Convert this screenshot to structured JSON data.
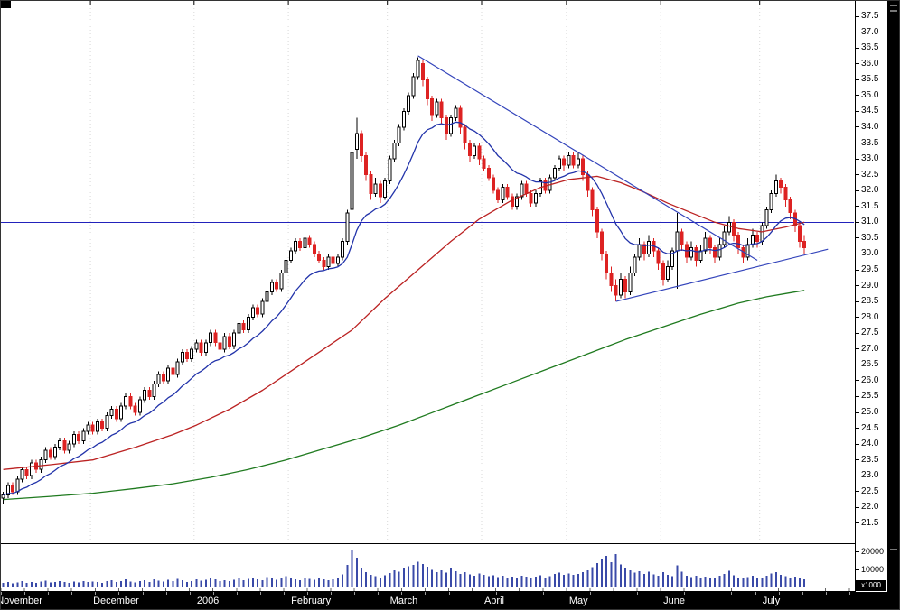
{
  "window": {
    "volume_multiplier_label": "x1000"
  },
  "chart_data": {
    "type": "candlestick",
    "total_slots": 181,
    "y_axis": {
      "label_min": 21.5,
      "label_max": 37.5,
      "step": 0.5,
      "view_min": 21.3,
      "view_max": 37.7
    },
    "x_axis": {
      "months": [
        {
          "label": "November",
          "day": -1.5
        },
        {
          "label": "December",
          "day": 19
        },
        {
          "label": "2006",
          "day": 41
        },
        {
          "label": "February",
          "day": 61
        },
        {
          "label": "March",
          "day": 82
        },
        {
          "label": "April",
          "day": 102
        },
        {
          "label": "May",
          "day": 120
        },
        {
          "label": "June",
          "day": 140
        },
        {
          "label": "July",
          "day": 161
        }
      ]
    },
    "volume_axis": {
      "ticks": [
        20000,
        10000
      ],
      "max": 22000,
      "multiplier_label": "x1000"
    },
    "colors": {
      "up_fill": "#ffffff",
      "up_stroke": "#000000",
      "down": "#dd2222",
      "volume": "#3a4aa8",
      "grid": "#d8d8d8"
    },
    "overlays": {
      "ema": {
        "period": 15,
        "color": "#2233aa"
      },
      "ma50": {
        "color": "#bb2222",
        "points": [
          [
            0,
            23.2
          ],
          [
            10,
            23.35
          ],
          [
            19,
            23.5
          ],
          [
            28,
            23.9
          ],
          [
            36,
            24.3
          ],
          [
            41,
            24.6
          ],
          [
            48,
            25.1
          ],
          [
            55,
            25.7
          ],
          [
            61,
            26.3
          ],
          [
            68,
            27.0
          ],
          [
            74,
            27.6
          ],
          [
            81,
            28.6
          ],
          [
            88,
            29.5
          ],
          [
            95,
            30.4
          ],
          [
            101,
            31.1
          ],
          [
            108,
            31.7
          ],
          [
            114,
            32.1
          ],
          [
            120,
            32.35
          ],
          [
            126,
            32.45
          ],
          [
            131,
            32.25
          ],
          [
            136,
            31.95
          ],
          [
            141,
            31.6
          ],
          [
            146,
            31.3
          ],
          [
            151,
            31.0
          ],
          [
            156,
            30.8
          ],
          [
            161,
            30.7
          ],
          [
            166,
            30.85
          ],
          [
            170,
            31.0
          ]
        ]
      },
      "ma200": {
        "color": "#1f7a1f",
        "points": [
          [
            0,
            22.25
          ],
          [
            10,
            22.35
          ],
          [
            19,
            22.45
          ],
          [
            28,
            22.6
          ],
          [
            36,
            22.75
          ],
          [
            44,
            22.95
          ],
          [
            52,
            23.2
          ],
          [
            60,
            23.5
          ],
          [
            68,
            23.85
          ],
          [
            76,
            24.2
          ],
          [
            84,
            24.6
          ],
          [
            92,
            25.05
          ],
          [
            100,
            25.5
          ],
          [
            108,
            25.95
          ],
          [
            116,
            26.4
          ],
          [
            124,
            26.85
          ],
          [
            132,
            27.3
          ],
          [
            140,
            27.7
          ],
          [
            148,
            28.1
          ],
          [
            156,
            28.45
          ],
          [
            162,
            28.65
          ],
          [
            166,
            28.75
          ],
          [
            170,
            28.85
          ]
        ]
      },
      "horizontal_lines": [
        {
          "price": 31.0,
          "color": "#2222bb"
        },
        {
          "price": 28.55,
          "color": "#3a3a66"
        }
      ],
      "trendlines": [
        {
          "from": [
            88,
            36.25
          ],
          "to": [
            160,
            29.8
          ],
          "color": "#3344bb"
        },
        {
          "from": [
            130,
            28.5
          ],
          "to": [
            175,
            30.15
          ],
          "color": "#3344bb"
        }
      ]
    },
    "candles": [
      [
        22.3,
        22.5,
        22.1,
        22.4
      ],
      [
        22.4,
        22.8,
        22.3,
        22.7
      ],
      [
        22.7,
        22.8,
        22.4,
        22.5
      ],
      [
        22.5,
        23.0,
        22.4,
        22.9
      ],
      [
        22.9,
        23.3,
        22.8,
        23.2
      ],
      [
        23.2,
        23.3,
        22.9,
        23.0
      ],
      [
        23.0,
        23.5,
        22.9,
        23.4
      ],
      [
        23.4,
        23.5,
        23.1,
        23.2
      ],
      [
        23.2,
        23.6,
        23.1,
        23.5
      ],
      [
        23.5,
        23.9,
        23.4,
        23.8
      ],
      [
        23.8,
        23.9,
        23.5,
        23.6
      ],
      [
        23.6,
        24.0,
        23.5,
        23.9
      ],
      [
        23.9,
        24.2,
        23.8,
        24.1
      ],
      [
        24.1,
        24.2,
        23.7,
        23.8
      ],
      [
        23.8,
        24.1,
        23.7,
        24.0
      ],
      [
        24.0,
        24.4,
        23.9,
        24.3
      ],
      [
        24.3,
        24.4,
        24.0,
        24.1
      ],
      [
        24.1,
        24.5,
        24.0,
        24.4
      ],
      [
        24.4,
        24.7,
        24.3,
        24.6
      ],
      [
        24.6,
        24.7,
        24.3,
        24.4
      ],
      [
        24.4,
        24.8,
        24.3,
        24.7
      ],
      [
        24.7,
        24.8,
        24.4,
        24.5
      ],
      [
        24.5,
        25.0,
        24.4,
        24.9
      ],
      [
        24.9,
        25.2,
        24.8,
        25.1
      ],
      [
        25.1,
        25.2,
        24.7,
        24.8
      ],
      [
        24.8,
        25.3,
        24.7,
        25.2
      ],
      [
        25.2,
        25.6,
        25.1,
        25.5
      ],
      [
        25.5,
        25.6,
        25.1,
        25.2
      ],
      [
        25.2,
        25.3,
        24.9,
        25.0
      ],
      [
        25.0,
        25.5,
        24.9,
        25.4
      ],
      [
        25.4,
        25.8,
        25.3,
        25.7
      ],
      [
        25.7,
        25.8,
        25.4,
        25.5
      ],
      [
        25.5,
        26.0,
        25.4,
        25.9
      ],
      [
        25.9,
        26.3,
        25.8,
        26.2
      ],
      [
        26.2,
        26.3,
        25.9,
        26.0
      ],
      [
        26.0,
        26.5,
        25.9,
        26.4
      ],
      [
        26.4,
        26.5,
        26.1,
        26.2
      ],
      [
        26.2,
        26.7,
        26.1,
        26.6
      ],
      [
        26.6,
        27.0,
        26.5,
        26.9
      ],
      [
        26.9,
        27.0,
        26.6,
        26.7
      ],
      [
        26.7,
        27.1,
        26.6,
        27.0
      ],
      [
        27.0,
        27.3,
        26.9,
        27.2
      ],
      [
        27.2,
        27.3,
        26.8,
        26.9
      ],
      [
        26.9,
        27.3,
        26.8,
        27.2
      ],
      [
        27.2,
        27.6,
        27.1,
        27.5
      ],
      [
        27.5,
        27.6,
        27.1,
        27.2
      ],
      [
        27.2,
        27.3,
        26.9,
        27.0
      ],
      [
        27.0,
        27.5,
        26.9,
        27.4
      ],
      [
        27.4,
        27.5,
        27.0,
        27.1
      ],
      [
        27.1,
        27.6,
        27.0,
        27.5
      ],
      [
        27.5,
        27.9,
        27.4,
        27.8
      ],
      [
        27.8,
        27.9,
        27.5,
        27.6
      ],
      [
        27.6,
        28.1,
        27.5,
        28.0
      ],
      [
        28.0,
        28.4,
        27.9,
        28.3
      ],
      [
        28.3,
        28.4,
        28.0,
        28.1
      ],
      [
        28.1,
        28.6,
        28.0,
        28.5
      ],
      [
        28.5,
        28.9,
        28.4,
        28.8
      ],
      [
        28.8,
        29.2,
        28.7,
        29.1
      ],
      [
        29.1,
        29.2,
        28.8,
        28.9
      ],
      [
        28.9,
        29.5,
        28.8,
        29.4
      ],
      [
        29.4,
        29.9,
        29.3,
        29.8
      ],
      [
        29.8,
        30.2,
        29.7,
        30.1
      ],
      [
        30.1,
        30.5,
        30.0,
        30.4
      ],
      [
        30.4,
        30.5,
        30.1,
        30.2
      ],
      [
        30.2,
        30.6,
        30.1,
        30.5
      ],
      [
        30.5,
        30.6,
        30.2,
        30.3
      ],
      [
        30.3,
        30.4,
        29.9,
        30.0
      ],
      [
        30.0,
        30.1,
        29.7,
        29.8
      ],
      [
        29.8,
        29.9,
        29.5,
        29.6
      ],
      [
        29.6,
        30.0,
        29.5,
        29.9
      ],
      [
        29.9,
        30.0,
        29.6,
        29.7
      ],
      [
        29.7,
        30.0,
        29.6,
        29.9
      ],
      [
        29.9,
        30.5,
        29.8,
        30.4
      ],
      [
        30.4,
        31.4,
        30.3,
        31.3
      ],
      [
        31.4,
        33.4,
        31.3,
        33.2
      ],
      [
        33.3,
        34.3,
        33.0,
        33.8
      ],
      [
        33.8,
        33.9,
        32.9,
        33.1
      ],
      [
        33.1,
        33.2,
        32.3,
        32.5
      ],
      [
        32.5,
        32.6,
        31.7,
        31.9
      ],
      [
        31.9,
        32.4,
        31.8,
        32.2
      ],
      [
        32.2,
        32.3,
        31.6,
        31.8
      ],
      [
        31.8,
        32.4,
        31.7,
        32.3
      ],
      [
        32.3,
        33.1,
        32.2,
        33.0
      ],
      [
        33.0,
        33.6,
        32.9,
        33.5
      ],
      [
        33.5,
        34.1,
        33.4,
        34.0
      ],
      [
        34.0,
        34.6,
        33.9,
        34.5
      ],
      [
        34.5,
        35.1,
        34.4,
        35.0
      ],
      [
        35.0,
        35.7,
        34.9,
        35.6
      ],
      [
        35.6,
        36.2,
        35.5,
        36.1
      ],
      [
        36.0,
        36.1,
        35.3,
        35.5
      ],
      [
        35.5,
        35.6,
        34.7,
        34.9
      ],
      [
        34.9,
        35.0,
        34.2,
        34.4
      ],
      [
        34.4,
        34.9,
        34.3,
        34.8
      ],
      [
        34.8,
        34.9,
        34.1,
        34.3
      ],
      [
        34.3,
        34.4,
        33.6,
        33.8
      ],
      [
        33.8,
        34.4,
        33.7,
        34.3
      ],
      [
        34.3,
        34.7,
        34.2,
        34.6
      ],
      [
        34.6,
        34.7,
        33.8,
        34.0
      ],
      [
        34.0,
        34.1,
        33.3,
        33.5
      ],
      [
        33.5,
        33.6,
        32.9,
        33.1
      ],
      [
        33.1,
        33.5,
        33.0,
        33.4
      ],
      [
        33.4,
        33.5,
        32.8,
        33.0
      ],
      [
        33.0,
        33.1,
        32.6,
        32.7
      ],
      [
        32.7,
        32.8,
        32.3,
        32.4
      ],
      [
        32.4,
        32.5,
        31.9,
        32.0
      ],
      [
        32.0,
        32.1,
        31.6,
        31.7
      ],
      [
        31.7,
        32.2,
        31.6,
        32.1
      ],
      [
        32.1,
        32.2,
        31.7,
        31.8
      ],
      [
        31.8,
        31.9,
        31.4,
        31.5
      ],
      [
        31.5,
        31.9,
        31.4,
        31.8
      ],
      [
        31.8,
        32.3,
        31.7,
        32.2
      ],
      [
        32.2,
        32.3,
        31.8,
        31.9
      ],
      [
        31.9,
        32.0,
        31.5,
        31.6
      ],
      [
        31.6,
        32.0,
        31.5,
        31.9
      ],
      [
        31.9,
        32.4,
        31.8,
        32.3
      ],
      [
        32.3,
        32.4,
        31.9,
        32.0
      ],
      [
        32.0,
        32.5,
        31.9,
        32.4
      ],
      [
        32.4,
        32.8,
        32.3,
        32.7
      ],
      [
        32.7,
        33.1,
        32.6,
        33.0
      ],
      [
        33.0,
        33.1,
        32.6,
        32.8
      ],
      [
        32.8,
        33.2,
        32.7,
        33.1
      ],
      [
        33.1,
        33.2,
        32.7,
        32.8
      ],
      [
        32.8,
        33.2,
        32.7,
        33.0
      ],
      [
        33.0,
        33.1,
        32.3,
        32.5
      ],
      [
        32.5,
        32.6,
        31.8,
        32.0
      ],
      [
        32.0,
        32.1,
        31.2,
        31.4
      ],
      [
        31.4,
        31.5,
        30.5,
        30.7
      ],
      [
        30.7,
        30.8,
        29.8,
        30.0
      ],
      [
        30.0,
        30.1,
        29.2,
        29.4
      ],
      [
        29.4,
        29.6,
        28.8,
        29.0
      ],
      [
        29.0,
        29.2,
        28.5,
        28.7
      ],
      [
        28.7,
        29.4,
        28.6,
        29.2
      ],
      [
        29.2,
        29.3,
        28.6,
        28.8
      ],
      [
        28.8,
        29.6,
        28.7,
        29.4
      ],
      [
        29.4,
        30.0,
        29.3,
        29.9
      ],
      [
        29.9,
        30.5,
        29.8,
        30.3
      ],
      [
        30.3,
        30.4,
        29.8,
        30.0
      ],
      [
        30.0,
        30.6,
        29.9,
        30.4
      ],
      [
        30.4,
        30.5,
        29.9,
        30.1
      ],
      [
        30.1,
        30.2,
        29.5,
        29.7
      ],
      [
        29.7,
        29.8,
        29.0,
        29.2
      ],
      [
        29.2,
        29.8,
        29.1,
        29.6
      ],
      [
        29.6,
        30.2,
        29.5,
        30.1
      ],
      [
        30.1,
        31.3,
        28.9,
        30.7
      ],
      [
        30.7,
        30.8,
        30.1,
        30.3
      ],
      [
        30.3,
        30.4,
        29.7,
        29.9
      ],
      [
        29.9,
        30.4,
        29.8,
        30.2
      ],
      [
        30.2,
        30.3,
        29.6,
        29.8
      ],
      [
        29.8,
        30.3,
        29.7,
        30.1
      ],
      [
        30.1,
        30.7,
        30.0,
        30.5
      ],
      [
        30.5,
        30.6,
        30.0,
        30.2
      ],
      [
        30.2,
        30.3,
        29.7,
        29.9
      ],
      [
        29.9,
        30.5,
        29.8,
        30.3
      ],
      [
        30.3,
        30.9,
        30.2,
        30.7
      ],
      [
        30.7,
        31.2,
        30.6,
        31.0
      ],
      [
        31.0,
        31.1,
        30.4,
        30.6
      ],
      [
        30.6,
        30.7,
        30.0,
        30.2
      ],
      [
        30.2,
        30.3,
        29.7,
        29.9
      ],
      [
        29.9,
        30.5,
        29.8,
        30.3
      ],
      [
        30.3,
        30.8,
        30.2,
        30.6
      ],
      [
        30.6,
        30.7,
        30.2,
        30.4
      ],
      [
        30.4,
        31.0,
        30.3,
        30.9
      ],
      [
        30.9,
        31.5,
        30.8,
        31.4
      ],
      [
        31.4,
        32.0,
        31.3,
        31.9
      ],
      [
        31.9,
        32.5,
        31.8,
        32.3
      ],
      [
        32.3,
        32.4,
        31.9,
        32.1
      ],
      [
        32.1,
        32.2,
        31.5,
        31.7
      ],
      [
        31.7,
        31.8,
        31.1,
        31.3
      ],
      [
        31.3,
        31.4,
        30.7,
        30.9
      ],
      [
        30.9,
        31.0,
        30.2,
        30.4
      ],
      [
        30.4,
        30.6,
        30.0,
        30.2
      ]
    ],
    "volume": [
      2400,
      3100,
      2200,
      2800,
      3500,
      2600,
      3000,
      2400,
      3300,
      3800,
      2700,
      3100,
      3600,
      2900,
      2500,
      3200,
      2800,
      3400,
      3000,
      3300,
      2900,
      2500,
      3600,
      4100,
      3000,
      3400,
      4400,
      3200,
      2800,
      3500,
      4000,
      3100,
      4600,
      3700,
      3300,
      4200,
      3600,
      4800,
      4100,
      2900,
      3400,
      4600,
      3800,
      4200,
      5100,
      4400,
      3600,
      4000,
      3500,
      4300,
      5600,
      4100,
      4700,
      5200,
      4500,
      4000,
      5800,
      5000,
      4200,
      5400,
      6200,
      5100,
      4600,
      4000,
      5500,
      4800,
      4200,
      5000,
      4400,
      3900,
      4600,
      5300,
      7200,
      12500,
      21000,
      16500,
      11000,
      8500,
      7000,
      6200,
      5500,
      6800,
      8000,
      9500,
      8800,
      10500,
      11800,
      12600,
      14200,
      13000,
      11500,
      9800,
      8600,
      9400,
      8200,
      10800,
      9000,
      7600,
      8400,
      7200,
      6600,
      7800,
      7000,
      6200,
      6800,
      5800,
      6400,
      5500,
      6000,
      5200,
      6600,
      5900,
      5400,
      6100,
      6800,
      5600,
      6300,
      7400,
      8200,
      7000,
      7800,
      6900,
      7500,
      8400,
      9600,
      11200,
      13500,
      15800,
      17500,
      14000,
      18500,
      12800,
      11000,
      9500,
      8200,
      9000,
      7600,
      8800,
      7200,
      6500,
      8500,
      7000,
      6200,
      12200,
      8800,
      6500,
      5800,
      6600,
      5400,
      6000,
      5000,
      5600,
      6400,
      7500,
      9200,
      6800,
      5500,
      5000,
      5800,
      6600,
      5200,
      5600,
      6400,
      7800,
      8600,
      7000,
      6200,
      5400,
      6000,
      5000,
      4400
    ]
  }
}
